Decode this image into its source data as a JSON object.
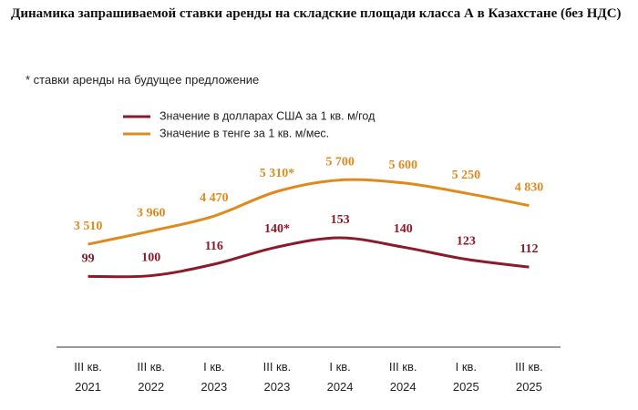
{
  "chart_data": {
    "type": "line",
    "title": "Динамика запрашиваемой ставки аренды на складские площади класса А в Казахстане (без НДС)",
    "subtitle": "* ставки аренды на будущее предложение",
    "categories": [
      "III кв.\n2021",
      "III кв.\n2022",
      "I кв.\n2023",
      "III кв.\n2023",
      "I кв.\n2024",
      "III кв.\n2024",
      "I кв.\n2025",
      "III кв.\n2025"
    ],
    "ylim": [
      0,
      320
    ],
    "y2lim": [
      0,
      7800
    ],
    "series": [
      {
        "name": "Значение в долларах США за 1 кв. м/год",
        "color": "#8b1a2b",
        "values": [
          99,
          100,
          116,
          140,
          153,
          140,
          123,
          112
        ],
        "value_labels": [
          "99",
          "100",
          "116",
          "140*",
          "153",
          "140",
          "123",
          "112"
        ]
      },
      {
        "name": "Значение в тенге за 1 кв. м/мес.",
        "color": "#e08a1e",
        "axis": "y2",
        "values": [
          3510,
          3960,
          4470,
          5310,
          5700,
          5600,
          5250,
          4830
        ],
        "value_labels": [
          "3 510",
          "3 960",
          "4 470",
          "5 310*",
          "5 700",
          "5 600",
          "5 250",
          "4 830"
        ]
      }
    ]
  }
}
